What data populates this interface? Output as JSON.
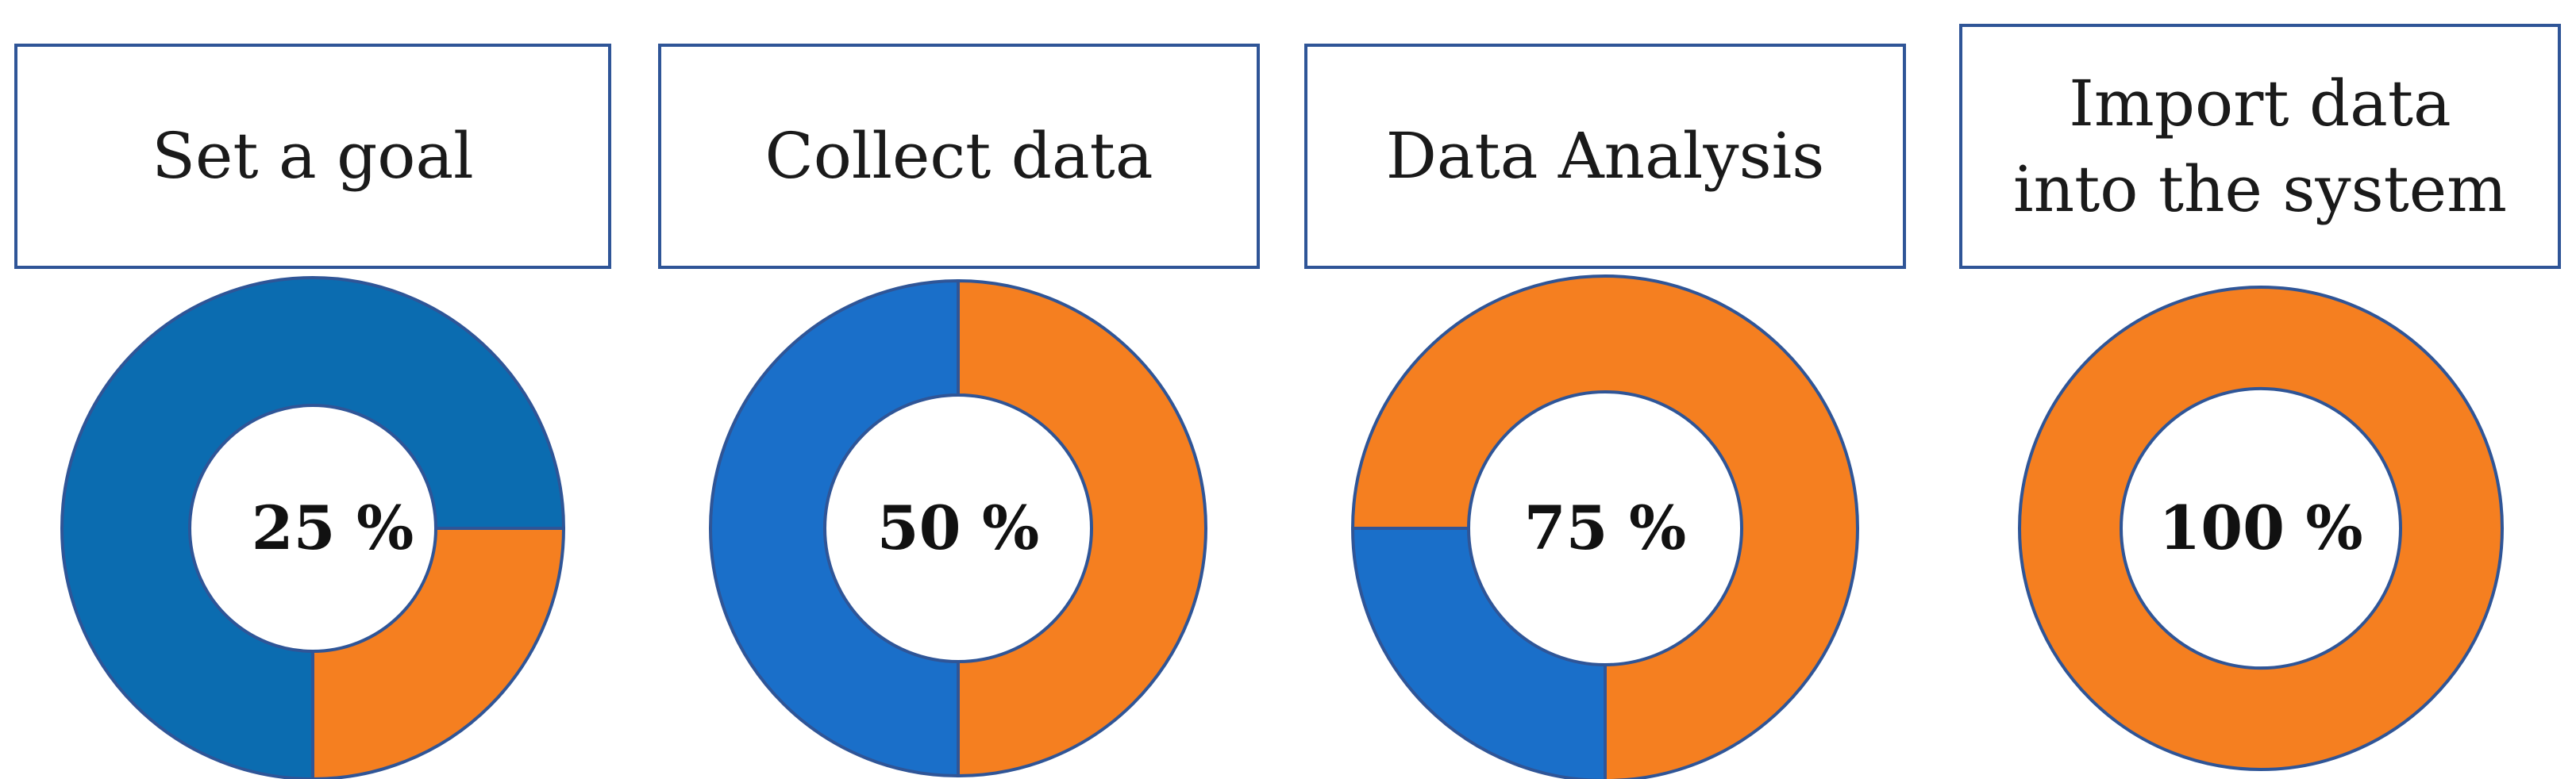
{
  "colors": {
    "complete": "#f57f20",
    "remaining_first": "#0b6cb0",
    "remaining": "#1a6fc9",
    "outline": "#2f5597",
    "box_border": "#2f5597"
  },
  "steps": [
    {
      "title": "Set a goal",
      "percent_label": "25 %"
    },
    {
      "title": "Collect data",
      "percent_label": "50 %"
    },
    {
      "title": "Data Analysis",
      "percent_label": "75 %"
    },
    {
      "title_line1": "Import data",
      "title_line2": "into the system",
      "percent_label": "100 %"
    }
  ],
  "chart_data": [
    {
      "type": "pie",
      "variant": "donut",
      "categories": [
        "complete",
        "remaining"
      ],
      "values": [
        25,
        75
      ]
    },
    {
      "type": "pie",
      "variant": "donut",
      "categories": [
        "complete",
        "remaining"
      ],
      "values": [
        50,
        50
      ]
    },
    {
      "type": "pie",
      "variant": "donut",
      "categories": [
        "complete",
        "remaining"
      ],
      "values": [
        75,
        25
      ]
    },
    {
      "type": "pie",
      "variant": "donut",
      "categories": [
        "complete",
        "remaining"
      ],
      "values": [
        100,
        0
      ]
    }
  ]
}
